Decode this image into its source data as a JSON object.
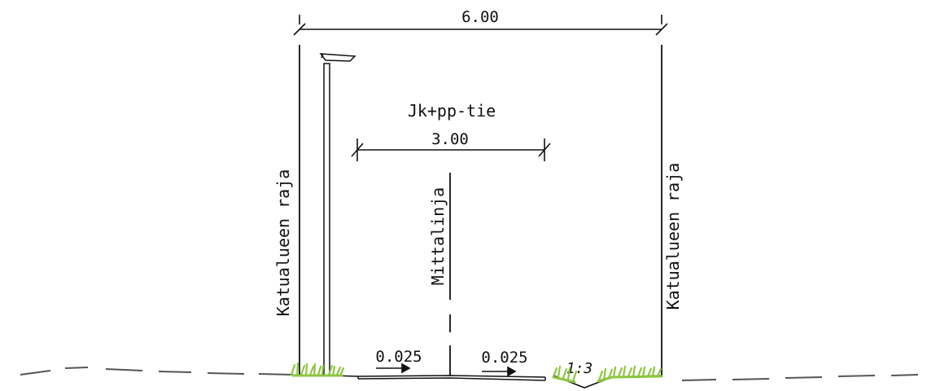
{
  "section": {
    "total_width_label": "6.00",
    "path_name": "Jk+pp-tie",
    "path_width_label": "3.00",
    "centerline_label": "Mittalinja",
    "boundary_left_label": "Katualueen raja",
    "boundary_right_label": "Katualueen raja",
    "slope_left_label": "0.025",
    "slope_right_label": "0.025",
    "ditch_slope_label": "1:3"
  },
  "colors": {
    "line": "#111111",
    "grass": "#8cc63f",
    "ground": "#555555"
  },
  "icons": {
    "street_lamp": "street-lamp-icon",
    "grass": "grass-icon"
  }
}
